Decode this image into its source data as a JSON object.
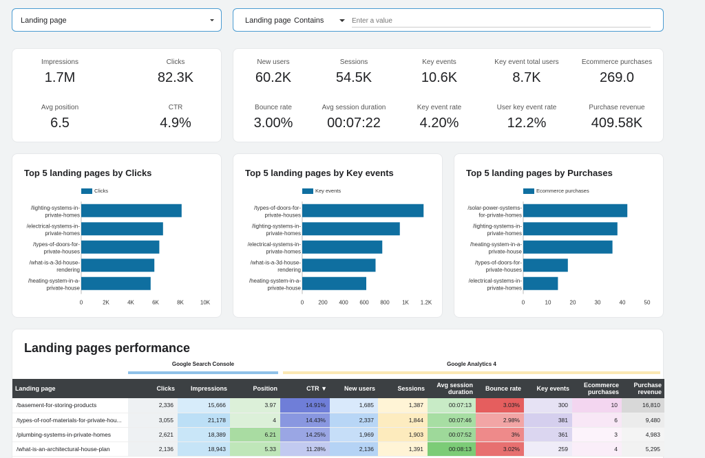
{
  "filters": {
    "control1": {
      "label": "Landing page"
    },
    "control2": {
      "label": "Landing page",
      "operator": "Contains",
      "placeholder": "Enter a value"
    }
  },
  "scorecards": {
    "search_console": [
      {
        "label": "Impressions",
        "value": "1.7M"
      },
      {
        "label": "Clicks",
        "value": "82.3K"
      },
      {
        "label": "Avg position",
        "value": "6.5"
      },
      {
        "label": "CTR",
        "value": "4.9%"
      }
    ],
    "analytics": [
      {
        "label": "New users",
        "value": "60.2K"
      },
      {
        "label": "Sessions",
        "value": "54.5K"
      },
      {
        "label": "Key events",
        "value": "10.6K"
      },
      {
        "label": "Key event total users",
        "value": "8.7K"
      },
      {
        "label": "Ecommerce purchases",
        "value": "269.0"
      },
      {
        "label": "Bounce rate",
        "value": "3.00%"
      },
      {
        "label": "Avg session duration",
        "value": "00:07:22"
      },
      {
        "label": "Key event rate",
        "value": "4.20%"
      },
      {
        "label": "User key event rate",
        "value": "12.2%"
      },
      {
        "label": "Purchase revenue",
        "value": "409.58K"
      }
    ]
  },
  "chart_data": [
    {
      "type": "bar",
      "orientation": "horizontal",
      "title": "Top 5 landing pages by Clicks",
      "legend": "Clicks",
      "categories": [
        [
          "/lighting-systems-in-",
          "private-homes"
        ],
        [
          "/electrical-systems-in-",
          "private-homes"
        ],
        [
          "/types-of-doors-for-",
          "private-houses"
        ],
        [
          "/what-is-a-3d-house-",
          "rendering"
        ],
        [
          "/heating-system-in-a-",
          "private-house"
        ]
      ],
      "values": [
        8100,
        6600,
        6300,
        5900,
        5600
      ],
      "xlim": [
        0,
        10000
      ],
      "ticks": [
        0,
        2000,
        4000,
        6000,
        8000,
        10000
      ],
      "tick_labels": [
        "0",
        "2K",
        "4K",
        "6K",
        "8K",
        "10K"
      ],
      "color": "#0f6fa0"
    },
    {
      "type": "bar",
      "orientation": "horizontal",
      "title": "Top 5 landing pages by Key events",
      "legend": "Key events",
      "categories": [
        [
          "/types-of-doors-for-",
          "private-houses"
        ],
        [
          "/lighting-systems-in-",
          "private-homes"
        ],
        [
          "/electrical-systems-in-",
          "private-homes"
        ],
        [
          "/what-is-a-3d-house-",
          "rendering"
        ],
        [
          "/heating-system-in-a-",
          "private-house"
        ]
      ],
      "values": [
        1175,
        945,
        775,
        710,
        620
      ],
      "xlim": [
        0,
        1200
      ],
      "ticks": [
        0,
        200,
        400,
        600,
        800,
        1000,
        1200
      ],
      "tick_labels": [
        "0",
        "200",
        "400",
        "600",
        "800",
        "1K",
        "1.2K"
      ],
      "color": "#0f6fa0"
    },
    {
      "type": "bar",
      "orientation": "horizontal",
      "title": "Top 5 landing pages by Purchases",
      "legend": "Ecommerce purchases",
      "categories": [
        [
          "/solar-power-systems-",
          "for-private-homes"
        ],
        [
          "/lighting-systems-in-",
          "private-homes"
        ],
        [
          "/heating-system-in-a-",
          "private-house"
        ],
        [
          "/types-of-doors-for-",
          "private-houses"
        ],
        [
          "/electrical-systems-in-",
          "private-homes"
        ]
      ],
      "values": [
        42,
        38,
        36,
        18,
        14
      ],
      "xlim": [
        0,
        50
      ],
      "ticks": [
        0,
        10,
        20,
        30,
        40,
        50
      ],
      "tick_labels": [
        "0",
        "10",
        "20",
        "30",
        "40",
        "50"
      ],
      "color": "#0f6fa0"
    }
  ],
  "table": {
    "title": "Landing pages performance",
    "groups": {
      "gsc": "Google Search Console",
      "ga4": "Google Analytics 4"
    },
    "columns": [
      "Landing page",
      "Clicks",
      "Impressions",
      "Position",
      "CTR ▼",
      "New users",
      "Sessions",
      "Avg session duration",
      "Bounce rate",
      "Key events",
      "Ecommerce purchases",
      "Purchase revenue"
    ],
    "rows": [
      [
        "/basement-for-storing-products",
        "2,336",
        "15,666",
        "3.97",
        "14.91%",
        "1,685",
        "1,387",
        "00:07:13",
        "3.03%",
        "300",
        "10",
        "16,810"
      ],
      [
        "/types-of-roof-materials-for-private-hou...",
        "3,055",
        "21,178",
        "4",
        "14.43%",
        "2,337",
        "1,844",
        "00:07:46",
        "2.98%",
        "381",
        "6",
        "9,480"
      ],
      [
        "/plumbing-systems-in-private-homes",
        "2,621",
        "18,389",
        "6.21",
        "14.25%",
        "1,969",
        "1,903",
        "00:07:52",
        "3%",
        "361",
        "3",
        "4,983"
      ],
      [
        "/what-is-an-architectural-house-plan",
        "2,136",
        "18,943",
        "5.33",
        "11.28%",
        "2,136",
        "1,391",
        "00:08:13",
        "3.02%",
        "259",
        "4",
        "5,295"
      ]
    ]
  }
}
